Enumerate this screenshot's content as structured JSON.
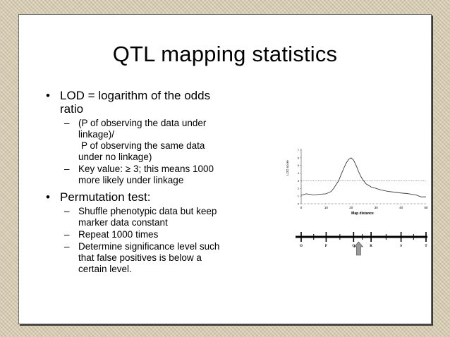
{
  "slide": {
    "title": "QTL mapping statistics",
    "bullets": [
      {
        "text_line1": "LOD = logarithm of the odds",
        "text_line2": "ratio",
        "sub": [
          {
            "lines": [
              "(P of observing the data under",
              "linkage)/",
              "P of observing the same data",
              "under no linkage)"
            ]
          },
          {
            "lines": [
              "Key value: ≥ 3; this means 1000",
              "more likely under linkage"
            ]
          }
        ]
      },
      {
        "text_line1": "Permutation test:",
        "sub": [
          {
            "lines": [
              "Shuffle phenotypic data but keep",
              "marker data constant"
            ]
          },
          {
            "lines": [
              "Repeat 1000 times"
            ]
          },
          {
            "lines": [
              "Determine significance level such",
              "that false positives is below a",
              "certain level."
            ]
          }
        ]
      }
    ],
    "bullet_glyph": "•",
    "dash_glyph": "–"
  },
  "figure": {
    "ylabel": "LOD score",
    "xlabel": "Map distance",
    "threshold_value": 3,
    "markers": [
      "O",
      "P",
      "Q",
      "R",
      "S",
      "T"
    ],
    "arrow_icon": "up-arrow-icon"
  },
  "chart_data": {
    "type": "line",
    "xlabel": "Map distance",
    "ylabel": "LOD score",
    "xlim": [
      0,
      50
    ],
    "ylim": [
      0,
      7
    ],
    "x_ticks": [
      0,
      10,
      20,
      30,
      40,
      50
    ],
    "y_ticks": [
      0,
      1,
      2,
      3,
      4,
      5,
      6,
      7
    ],
    "threshold": 3,
    "series": [
      {
        "x": [
          0,
          2,
          5,
          8,
          10,
          12,
          13,
          15,
          16,
          17,
          18,
          19,
          20,
          21,
          22,
          23,
          24,
          25,
          26,
          27,
          28,
          30,
          32,
          35,
          38,
          40,
          42,
          44,
          46,
          48,
          50
        ],
        "y": [
          1.1,
          1.3,
          1.15,
          1.25,
          1.3,
          1.6,
          2.0,
          3.0,
          3.8,
          4.6,
          5.3,
          5.8,
          6.0,
          5.7,
          5.0,
          4.2,
          3.5,
          3.0,
          2.6,
          2.4,
          2.2,
          2.0,
          1.8,
          1.6,
          1.5,
          1.4,
          1.35,
          1.25,
          1.15,
          0.9,
          0.9
        ]
      }
    ],
    "marker_positions": [
      0,
      10,
      21,
      28,
      40,
      50
    ]
  }
}
